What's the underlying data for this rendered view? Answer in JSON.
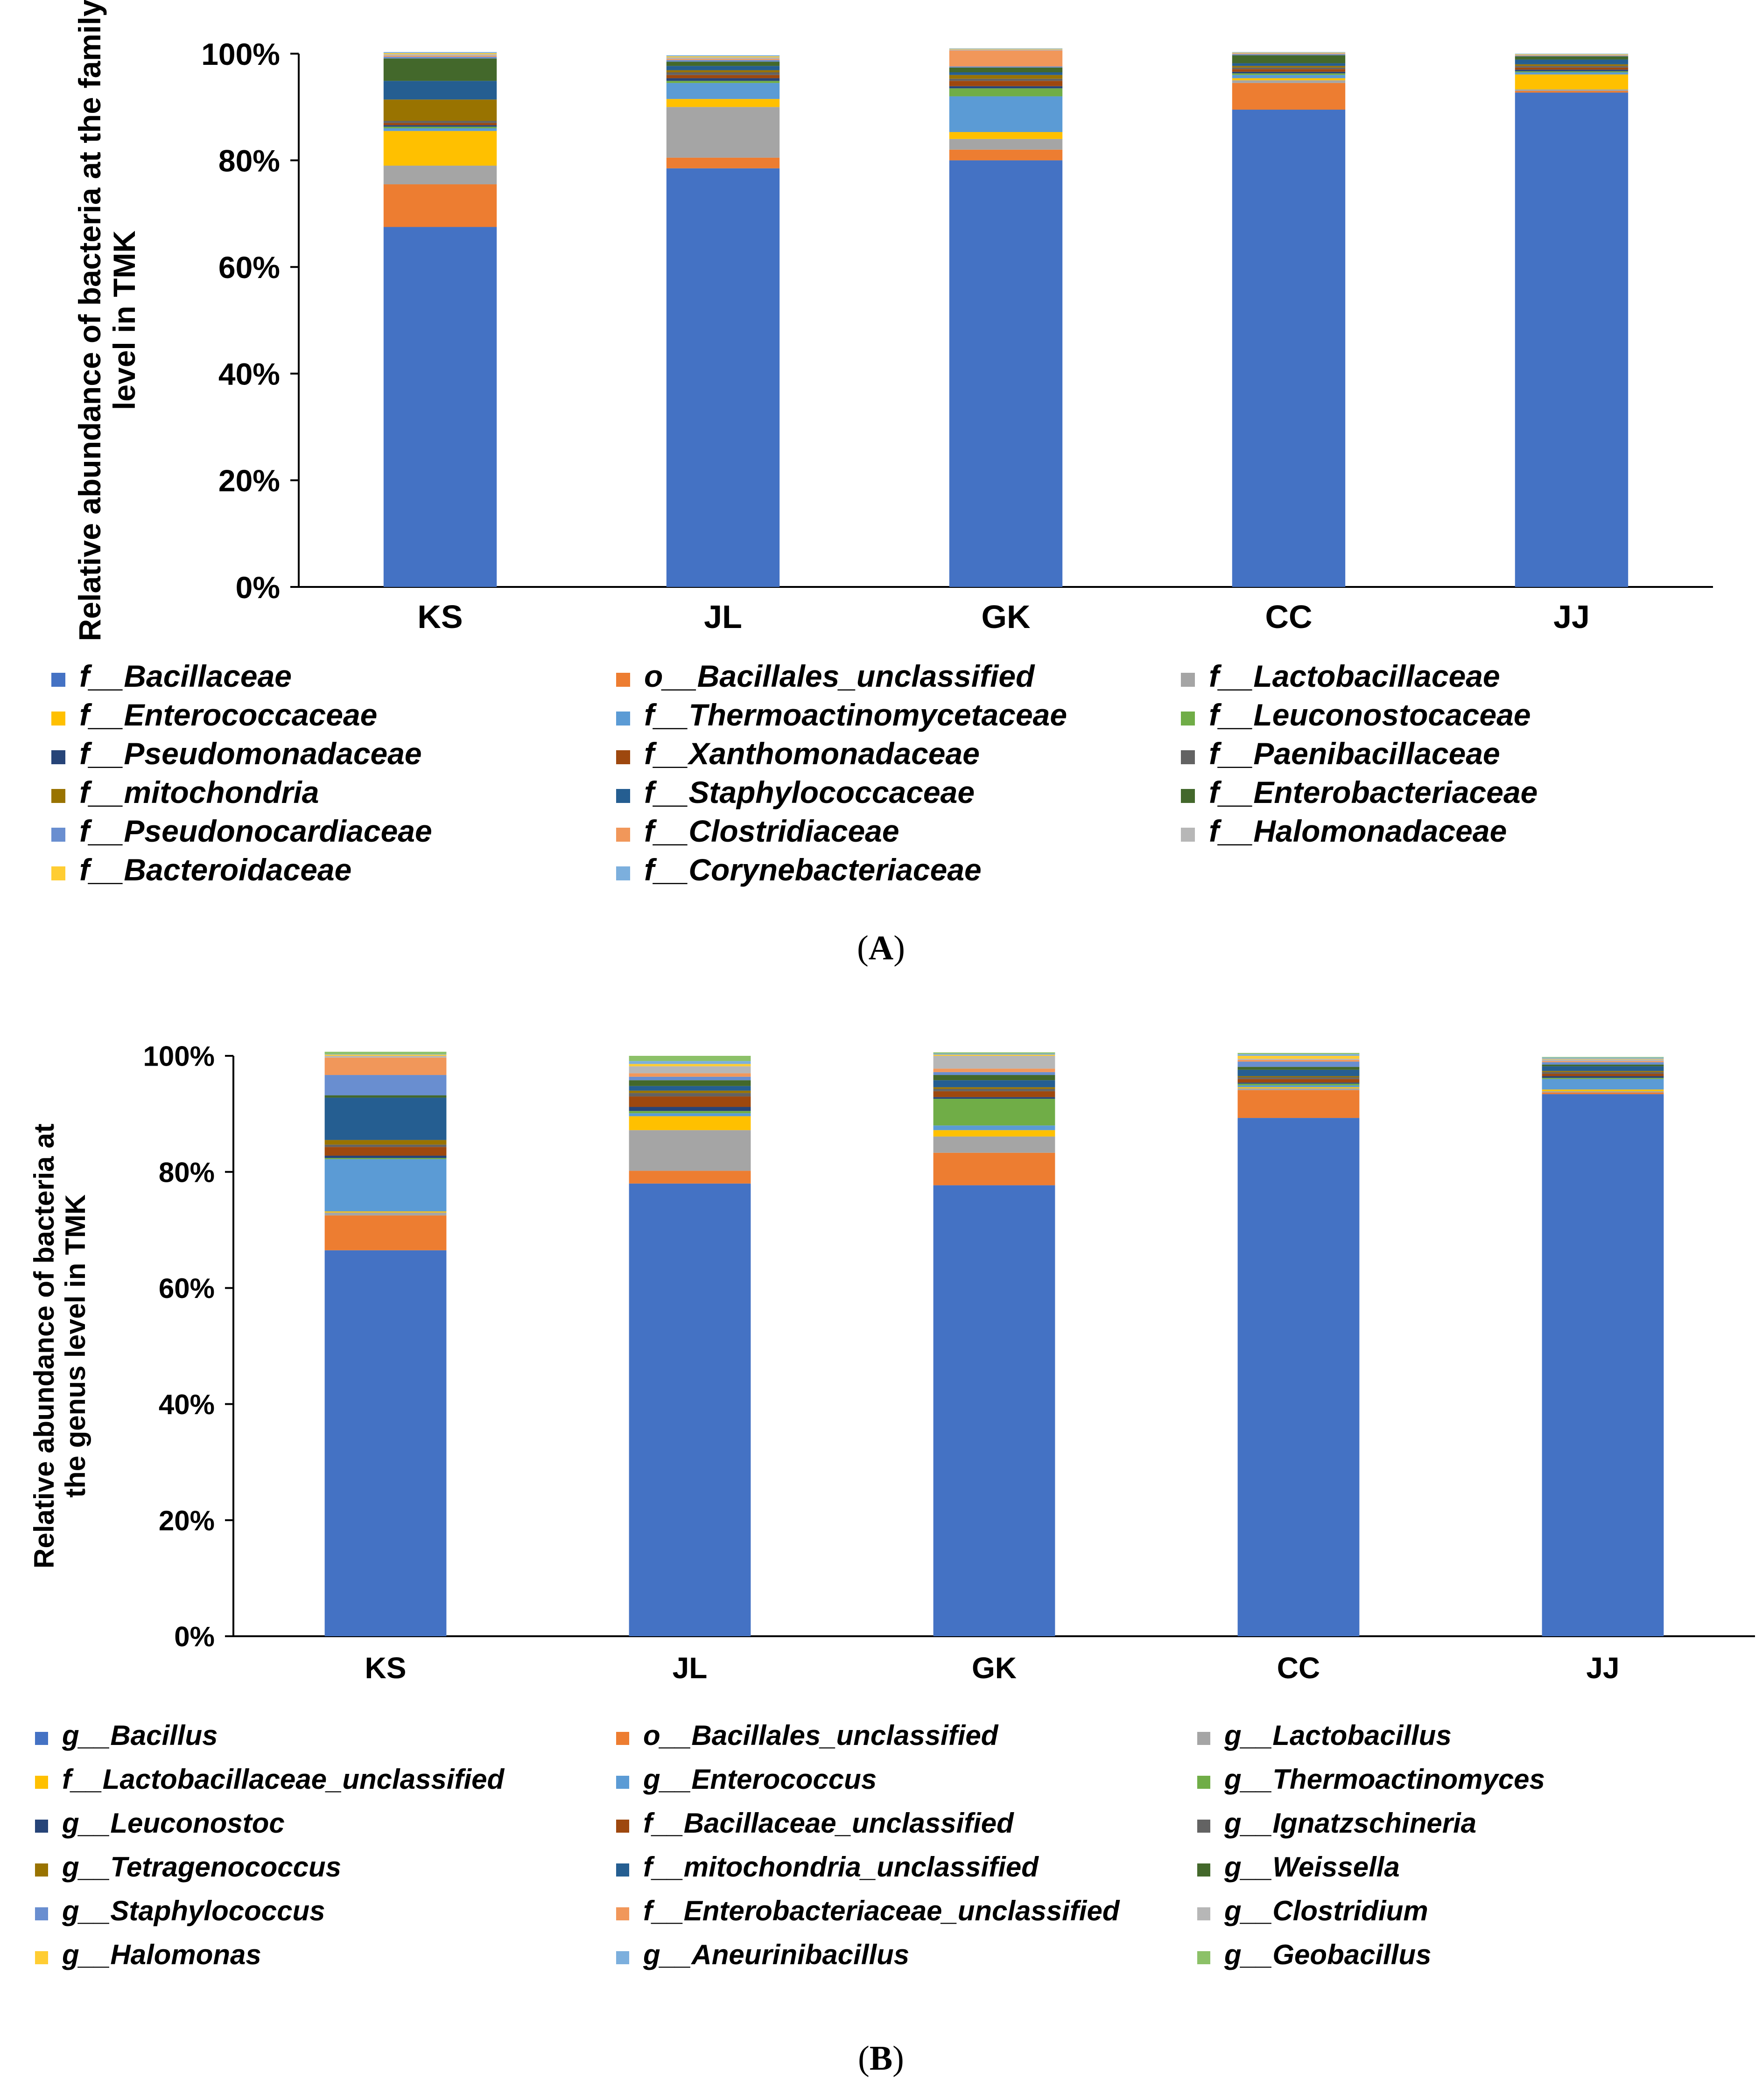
{
  "chart_data": [
    {
      "type": "bar",
      "stacked": true,
      "panel_label": "A",
      "title": "",
      "ylabel": "Relative abundance of bacteria at the family level in TMK",
      "xlabel": "",
      "categories": [
        "KS",
        "JL",
        "GK",
        "CC",
        "JJ"
      ],
      "yticks": [
        "0%",
        "20%",
        "40%",
        "60%",
        "80%",
        "100%"
      ],
      "ylim": [
        0,
        100
      ],
      "grid": false,
      "legend_position": "bottom",
      "series": [
        {
          "name": "f__Bacillaceae",
          "color": "#4472C4",
          "values": [
            67.5,
            78.5,
            80.0,
            89.5,
            92.7
          ]
        },
        {
          "name": "o__Bacillales_unclassified",
          "color": "#ED7D31",
          "values": [
            8.0,
            2.0,
            2.0,
            5.0,
            0.3
          ]
        },
        {
          "name": "f__Lactobacillaceae",
          "color": "#A5A5A5",
          "values": [
            3.5,
            9.5,
            2.0,
            0.5,
            0.3
          ]
        },
        {
          "name": "f__Enterococcaceae",
          "color": "#FFC000",
          "values": [
            6.5,
            1.5,
            1.3,
            0.4,
            2.8
          ]
        },
        {
          "name": "f__Thermoactinomycetaceae",
          "color": "#5B9BD5",
          "values": [
            0.5,
            3.0,
            6.7,
            0.6,
            0.4
          ]
        },
        {
          "name": "f__Leuconostocaceae",
          "color": "#70AD47",
          "values": [
            0.3,
            0.4,
            1.5,
            0.3,
            0.2
          ]
        },
        {
          "name": "f__Pseudomonadaceae",
          "color": "#264478",
          "values": [
            0.3,
            0.5,
            0.4,
            0.3,
            0.3
          ]
        },
        {
          "name": "f__Xanthomonadaceae",
          "color": "#9E480E",
          "values": [
            0.4,
            0.6,
            1.0,
            0.5,
            0.4
          ]
        },
        {
          "name": "f__Paenibacillaceae",
          "color": "#636363",
          "values": [
            0.4,
            0.5,
            0.4,
            0.3,
            0.3
          ]
        },
        {
          "name": "f__mitochondria",
          "color": "#997300",
          "values": [
            4.0,
            0.4,
            0.7,
            0.3,
            0.3
          ]
        },
        {
          "name": "f__Staphylococcaceae",
          "color": "#255E91",
          "values": [
            3.5,
            0.8,
            0.5,
            0.5,
            0.9
          ]
        },
        {
          "name": "f__Enterobacteriaceae",
          "color": "#43682B",
          "values": [
            4.2,
            0.8,
            0.9,
            1.5,
            0.6
          ]
        },
        {
          "name": "f__Pseudonocardiaceae",
          "color": "#698ED0",
          "values": [
            0.3,
            0.3,
            0.2,
            0.2,
            0.1
          ]
        },
        {
          "name": "f__Clostridiaceae",
          "color": "#F1975A",
          "values": [
            0.2,
            0.2,
            3.0,
            0.1,
            0.1
          ]
        },
        {
          "name": "f__Halomonadaceae",
          "color": "#B7B7B7",
          "values": [
            0.3,
            0.3,
            0.2,
            0.1,
            0.1
          ]
        },
        {
          "name": "f__Bacteroidaceae",
          "color": "#FFCD33",
          "values": [
            0.2,
            0.2,
            0.1,
            0.1,
            0.1
          ]
        },
        {
          "name": "f__Corynebacteriaceae",
          "color": "#7CAFDD",
          "values": [
            0.2,
            0.2,
            0.1,
            0.1,
            0.1
          ]
        }
      ]
    },
    {
      "type": "bar",
      "stacked": true,
      "panel_label": "B",
      "title": "",
      "ylabel": "Relative abundance of bacteria at the genus level in TMK",
      "xlabel": "",
      "categories": [
        "KS",
        "JL",
        "GK",
        "CC",
        "JJ"
      ],
      "yticks": [
        "0%",
        "20%",
        "40%",
        "60%",
        "80%",
        "100%"
      ],
      "ylim": [
        0,
        100
      ],
      "grid": false,
      "legend_position": "bottom",
      "series": [
        {
          "name": "g__Bacillus",
          "color": "#4472C4",
          "values": [
            66.5,
            78.0,
            77.7,
            89.3,
            93.4
          ]
        },
        {
          "name": "o__Bacillales_unclassified",
          "color": "#ED7D31",
          "values": [
            6.0,
            2.2,
            5.6,
            4.8,
            0.3
          ]
        },
        {
          "name": "g__Lactobacillus",
          "color": "#A5A5A5",
          "values": [
            0.5,
            7.0,
            2.8,
            0.3,
            0.2
          ]
        },
        {
          "name": "f__Lactobacillaceae_unclassified",
          "color": "#FFC000",
          "values": [
            0.2,
            2.4,
            1.1,
            0.2,
            0.3
          ]
        },
        {
          "name": "g__Enterococcus",
          "color": "#5B9BD5",
          "values": [
            9.0,
            0.5,
            0.8,
            0.3,
            1.8
          ]
        },
        {
          "name": "g__Thermoactinomyces",
          "color": "#70AD47",
          "values": [
            0.2,
            0.4,
            4.6,
            0.3,
            0.2
          ]
        },
        {
          "name": "g__Leuconostoc",
          "color": "#264478",
          "values": [
            0.4,
            0.7,
            0.3,
            0.2,
            0.3
          ]
        },
        {
          "name": "f__Bacillaceae_unclassified",
          "color": "#9E480E",
          "values": [
            1.5,
            1.8,
            1.0,
            0.6,
            0.4
          ]
        },
        {
          "name": "g__Ignatzschineria",
          "color": "#636363",
          "values": [
            0.4,
            0.6,
            0.4,
            0.3,
            0.3
          ]
        },
        {
          "name": "g__Tetragenococcus",
          "color": "#997300",
          "values": [
            0.8,
            0.4,
            0.3,
            0.2,
            0.2
          ]
        },
        {
          "name": "f__mitochondria_unclassified",
          "color": "#255E91",
          "values": [
            7.3,
            0.8,
            1.2,
            1.1,
            0.8
          ]
        },
        {
          "name": "g__Weissella",
          "color": "#43682B",
          "values": [
            0.4,
            1.0,
            0.9,
            0.5,
            0.3
          ]
        },
        {
          "name": "g__Staphylococcus",
          "color": "#698ED0",
          "values": [
            3.5,
            0.6,
            0.5,
            0.9,
            0.4
          ]
        },
        {
          "name": "f__Enterobacteriaceae_unclassified",
          "color": "#F1975A",
          "values": [
            3.0,
            0.6,
            0.6,
            0.3,
            0.2
          ]
        },
        {
          "name": "g__Clostridium",
          "color": "#B7B7B7",
          "values": [
            0.3,
            1.2,
            2.2,
            0.2,
            0.3
          ]
        },
        {
          "name": "g__Halomonas",
          "color": "#FFCD33",
          "values": [
            0.2,
            0.4,
            0.2,
            0.5,
            0.1
          ]
        },
        {
          "name": "g__Aneurinibacillus",
          "color": "#7CAFDD",
          "values": [
            0.1,
            0.5,
            0.2,
            0.3,
            0.2
          ]
        },
        {
          "name": "g__Geobacillus",
          "color": "#8CC168",
          "values": [
            0.4,
            0.9,
            0.2,
            0.2,
            0.1
          ]
        }
      ]
    }
  ]
}
